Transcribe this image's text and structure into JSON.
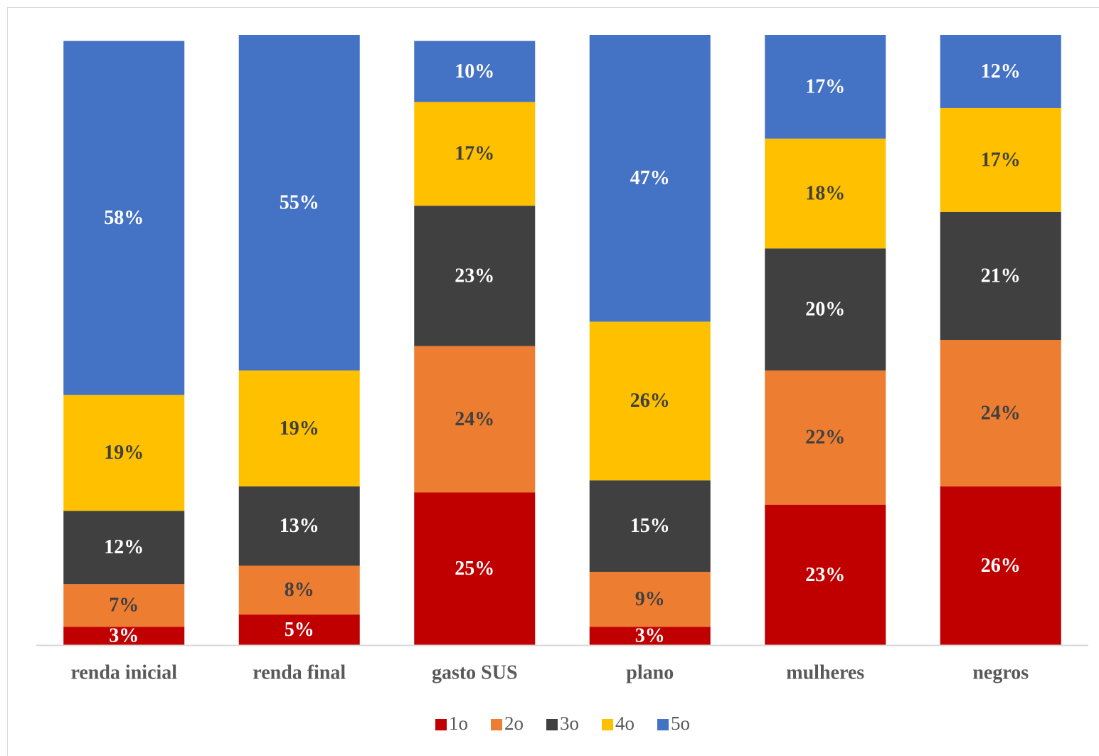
{
  "chart_data": {
    "type": "stacked_bar",
    "categories": [
      "renda inicial",
      "renda final",
      "gasto SUS",
      "plano",
      "mulheres",
      "negros"
    ],
    "ylim": [
      0,
      100
    ],
    "series": [
      {
        "name": "1o",
        "color": "#c00000",
        "label_color": "#ffffff",
        "values": [
          3,
          5,
          25,
          3,
          23,
          26
        ],
        "value_labels": [
          "3%",
          "5%",
          "25%",
          "3%",
          "23%",
          "26%"
        ]
      },
      {
        "name": "2o",
        "color": "#ed7d31",
        "label_color": "#404040",
        "values": [
          7,
          8,
          24,
          9,
          22,
          24
        ],
        "value_labels": [
          "7%",
          "8%",
          "24%",
          "9%",
          "22%",
          "24%"
        ]
      },
      {
        "name": "3o",
        "color": "#404040",
        "label_color": "#ffffff",
        "values": [
          12,
          13,
          23,
          15,
          20,
          21
        ],
        "value_labels": [
          "12%",
          "13%",
          "23%",
          "15%",
          "20%",
          "21%"
        ]
      },
      {
        "name": "4o",
        "color": "#ffc000",
        "label_color": "#404040",
        "values": [
          19,
          19,
          17,
          26,
          18,
          17
        ],
        "value_labels": [
          "19%",
          "19%",
          "17%",
          "26%",
          "18%",
          "17%"
        ]
      },
      {
        "name": "5o",
        "color": "#4472c4",
        "label_color": "#ffffff",
        "values": [
          58,
          55,
          10,
          47,
          17,
          12
        ],
        "value_labels": [
          "58%",
          "55%",
          "10%",
          "47%",
          "17%",
          "12%"
        ]
      }
    ],
    "legend": "bottom"
  }
}
